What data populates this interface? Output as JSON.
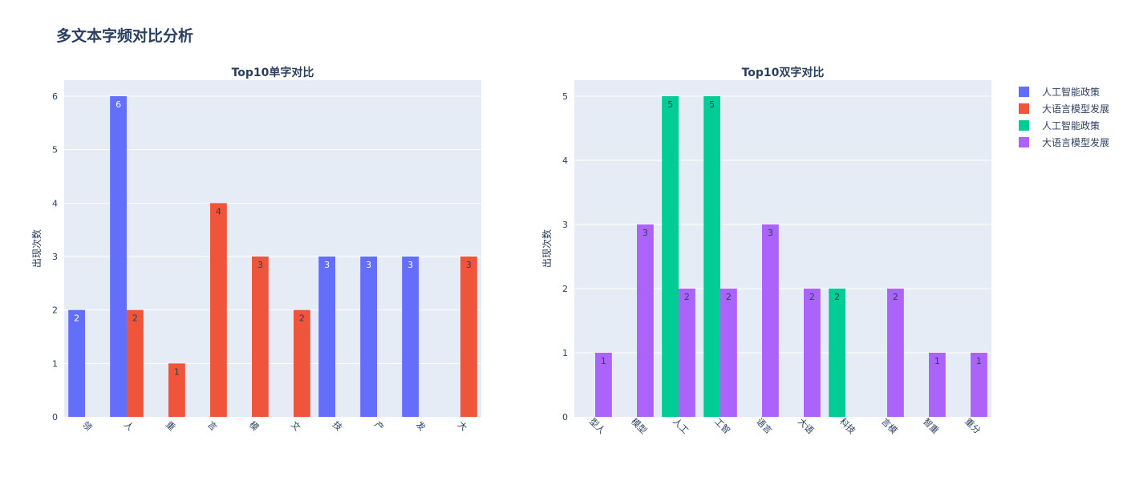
{
  "main_title": "多文本字频对比分析",
  "legend": [
    {
      "label": "人工智能政策",
      "color": "#636efa"
    },
    {
      "label": "大语言模型发展",
      "color": "#ef553b"
    },
    {
      "label": "人工智能政策",
      "color": "#00cc96"
    },
    {
      "label": "大语言模型发展",
      "color": "#ab63fa"
    }
  ],
  "chart_data": [
    {
      "type": "bar",
      "title": "Top10单字对比",
      "ylabel": "出现次数",
      "xlabel": "",
      "ylim": [
        0,
        6.3
      ],
      "yticks": [
        0,
        1,
        2,
        3,
        4,
        5,
        6
      ],
      "grid": true,
      "categories": [
        "领",
        "人",
        "重",
        "言",
        "模",
        "文",
        "技",
        "产",
        "发",
        "大"
      ],
      "series": [
        {
          "name": "人工智能政策",
          "color": "#636efa",
          "values": [
            2,
            6,
            null,
            null,
            null,
            null,
            3,
            3,
            3,
            null
          ]
        },
        {
          "name": "大语言模型发展",
          "color": "#ef553b",
          "values": [
            null,
            2,
            1,
            4,
            3,
            2,
            null,
            null,
            null,
            3
          ]
        }
      ]
    },
    {
      "type": "bar",
      "title": "Top10双字对比",
      "ylabel": "出现次数",
      "xlabel": "",
      "ylim": [
        0,
        5.25
      ],
      "yticks": [
        0,
        1,
        2,
        3,
        4,
        5
      ],
      "grid": true,
      "categories": [
        "型人",
        "模型",
        "人工",
        "工智",
        "语言",
        "大语",
        "科技",
        "言模",
        "智重",
        "重分"
      ],
      "series": [
        {
          "name": "人工智能政策",
          "color": "#00cc96",
          "values": [
            null,
            null,
            5,
            5,
            null,
            null,
            2,
            null,
            null,
            null
          ]
        },
        {
          "name": "大语言模型发展",
          "color": "#ab63fa",
          "values": [
            1,
            3,
            2,
            2,
            3,
            2,
            null,
            2,
            1,
            1
          ]
        }
      ]
    }
  ]
}
